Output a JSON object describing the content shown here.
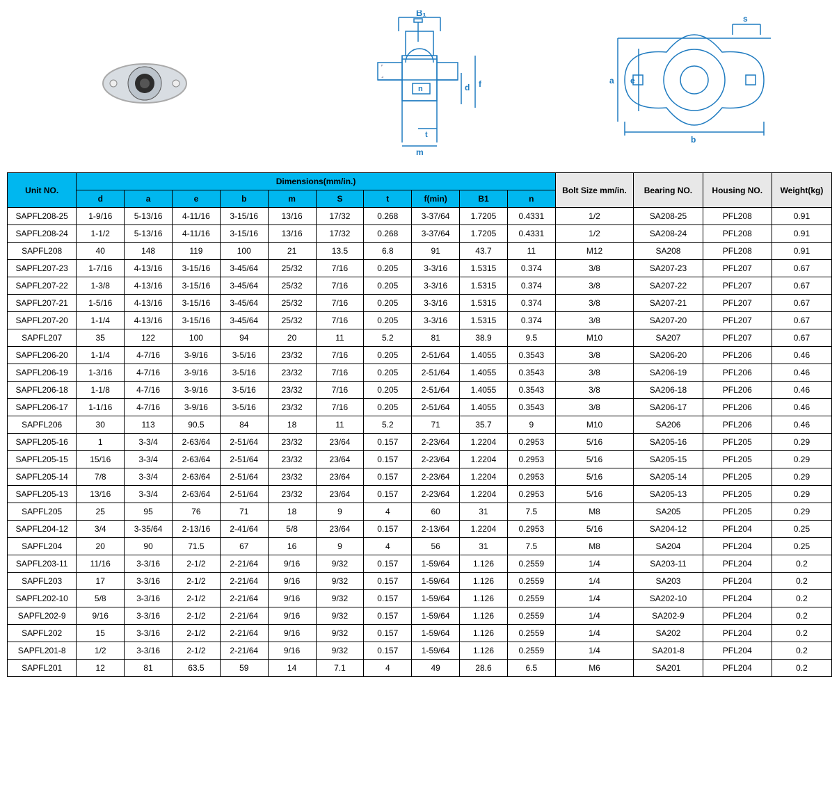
{
  "headers": {
    "unit": "Unit NO.",
    "dimensions": "Dimensions(mm/in.)",
    "bolt": "Bolt Size mm/in.",
    "bearing": "Bearing NO.",
    "housing": "Housing NO.",
    "weight": "Weight(kg)"
  },
  "dim_cols": [
    "d",
    "a",
    "e",
    "b",
    "m",
    "S",
    "t",
    "f(min)",
    "B1",
    "n"
  ],
  "colors": {
    "header_cyan": "#00b7ef",
    "header_grey": "#e8e8e8",
    "border": "#000000",
    "text": "#000000",
    "diagram_label": "#1f7bc0"
  },
  "diagram_labels": {
    "side": [
      "B₁",
      "d",
      "f",
      "n",
      "t",
      "m"
    ],
    "front": [
      "s",
      "a",
      "e",
      "b"
    ]
  },
  "rows": [
    [
      "SAPFL208-25",
      "1-9/16",
      "5-13/16",
      "4-11/16",
      "3-15/16",
      "13/16",
      "17/32",
      "0.268",
      "3-37/64",
      "1.7205",
      "0.4331",
      "1/2",
      "SA208-25",
      "PFL208",
      "0.91"
    ],
    [
      "SAPFL208-24",
      "1-1/2",
      "5-13/16",
      "4-11/16",
      "3-15/16",
      "13/16",
      "17/32",
      "0.268",
      "3-37/64",
      "1.7205",
      "0.4331",
      "1/2",
      "SA208-24",
      "PFL208",
      "0.91"
    ],
    [
      "SAPFL208",
      "40",
      "148",
      "119",
      "100",
      "21",
      "13.5",
      "6.8",
      "91",
      "43.7",
      "11",
      "M12",
      "SA208",
      "PFL208",
      "0.91"
    ],
    [
      "SAPFL207-23",
      "1-7/16",
      "4-13/16",
      "3-15/16",
      "3-45/64",
      "25/32",
      "7/16",
      "0.205",
      "3-3/16",
      "1.5315",
      "0.374",
      "3/8",
      "SA207-23",
      "PFL207",
      "0.67"
    ],
    [
      "SAPFL207-22",
      "1-3/8",
      "4-13/16",
      "3-15/16",
      "3-45/64",
      "25/32",
      "7/16",
      "0.205",
      "3-3/16",
      "1.5315",
      "0.374",
      "3/8",
      "SA207-22",
      "PFL207",
      "0.67"
    ],
    [
      "SAPFL207-21",
      "1-5/16",
      "4-13/16",
      "3-15/16",
      "3-45/64",
      "25/32",
      "7/16",
      "0.205",
      "3-3/16",
      "1.5315",
      "0.374",
      "3/8",
      "SA207-21",
      "PFL207",
      "0.67"
    ],
    [
      "SAPFL207-20",
      "1-1/4",
      "4-13/16",
      "3-15/16",
      "3-45/64",
      "25/32",
      "7/16",
      "0.205",
      "3-3/16",
      "1.5315",
      "0.374",
      "3/8",
      "SA207-20",
      "PFL207",
      "0.67"
    ],
    [
      "SAPFL207",
      "35",
      "122",
      "100",
      "94",
      "20",
      "11",
      "5.2",
      "81",
      "38.9",
      "9.5",
      "M10",
      "SA207",
      "PFL207",
      "0.67"
    ],
    [
      "SAPFL206-20",
      "1-1/4",
      "4-7/16",
      "3-9/16",
      "3-5/16",
      "23/32",
      "7/16",
      "0.205",
      "2-51/64",
      "1.4055",
      "0.3543",
      "3/8",
      "SA206-20",
      "PFL206",
      "0.46"
    ],
    [
      "SAPFL206-19",
      "1-3/16",
      "4-7/16",
      "3-9/16",
      "3-5/16",
      "23/32",
      "7/16",
      "0.205",
      "2-51/64",
      "1.4055",
      "0.3543",
      "3/8",
      "SA206-19",
      "PFL206",
      "0.46"
    ],
    [
      "SAPFL206-18",
      "1-1/8",
      "4-7/16",
      "3-9/16",
      "3-5/16",
      "23/32",
      "7/16",
      "0.205",
      "2-51/64",
      "1.4055",
      "0.3543",
      "3/8",
      "SA206-18",
      "PFL206",
      "0.46"
    ],
    [
      "SAPFL206-17",
      "1-1/16",
      "4-7/16",
      "3-9/16",
      "3-5/16",
      "23/32",
      "7/16",
      "0.205",
      "2-51/64",
      "1.4055",
      "0.3543",
      "3/8",
      "SA206-17",
      "PFL206",
      "0.46"
    ],
    [
      "SAPFL206",
      "30",
      "113",
      "90.5",
      "84",
      "18",
      "11",
      "5.2",
      "71",
      "35.7",
      "9",
      "M10",
      "SA206",
      "PFL206",
      "0.46"
    ],
    [
      "SAPFL205-16",
      "1",
      "3-3/4",
      "2-63/64",
      "2-51/64",
      "23/32",
      "23/64",
      "0.157",
      "2-23/64",
      "1.2204",
      "0.2953",
      "5/16",
      "SA205-16",
      "PFL205",
      "0.29"
    ],
    [
      "SAPFL205-15",
      "15/16",
      "3-3/4",
      "2-63/64",
      "2-51/64",
      "23/32",
      "23/64",
      "0.157",
      "2-23/64",
      "1.2204",
      "0.2953",
      "5/16",
      "SA205-15",
      "PFL205",
      "0.29"
    ],
    [
      "SAPFL205-14",
      "7/8",
      "3-3/4",
      "2-63/64",
      "2-51/64",
      "23/32",
      "23/64",
      "0.157",
      "2-23/64",
      "1.2204",
      "0.2953",
      "5/16",
      "SA205-14",
      "PFL205",
      "0.29"
    ],
    [
      "SAPFL205-13",
      "13/16",
      "3-3/4",
      "2-63/64",
      "2-51/64",
      "23/32",
      "23/64",
      "0.157",
      "2-23/64",
      "1.2204",
      "0.2953",
      "5/16",
      "SA205-13",
      "PFL205",
      "0.29"
    ],
    [
      "SAPFL205",
      "25",
      "95",
      "76",
      "71",
      "18",
      "9",
      "4",
      "60",
      "31",
      "7.5",
      "M8",
      "SA205",
      "PFL205",
      "0.29"
    ],
    [
      "SAPFL204-12",
      "3/4",
      "3-35/64",
      "2-13/16",
      "2-41/64",
      "5/8",
      "23/64",
      "0.157",
      "2-13/64",
      "1.2204",
      "0.2953",
      "5/16",
      "SA204-12",
      "PFL204",
      "0.25"
    ],
    [
      "SAPFL204",
      "20",
      "90",
      "71.5",
      "67",
      "16",
      "9",
      "4",
      "56",
      "31",
      "7.5",
      "M8",
      "SA204",
      "PFL204",
      "0.25"
    ],
    [
      "SAPFL203-11",
      "11/16",
      "3-3/16",
      "2-1/2",
      "2-21/64",
      "9/16",
      "9/32",
      "0.157",
      "1-59/64",
      "1.126",
      "0.2559",
      "1/4",
      "SA203-11",
      "PFL204",
      "0.2"
    ],
    [
      "SAPFL203",
      "17",
      "3-3/16",
      "2-1/2",
      "2-21/64",
      "9/16",
      "9/32",
      "0.157",
      "1-59/64",
      "1.126",
      "0.2559",
      "1/4",
      "SA203",
      "PFL204",
      "0.2"
    ],
    [
      "SAPFL202-10",
      "5/8",
      "3-3/16",
      "2-1/2",
      "2-21/64",
      "9/16",
      "9/32",
      "0.157",
      "1-59/64",
      "1.126",
      "0.2559",
      "1/4",
      "SA202-10",
      "PFL204",
      "0.2"
    ],
    [
      "SAPFL202-9",
      "9/16",
      "3-3/16",
      "2-1/2",
      "2-21/64",
      "9/16",
      "9/32",
      "0.157",
      "1-59/64",
      "1.126",
      "0.2559",
      "1/4",
      "SA202-9",
      "PFL204",
      "0.2"
    ],
    [
      "SAPFL202",
      "15",
      "3-3/16",
      "2-1/2",
      "2-21/64",
      "9/16",
      "9/32",
      "0.157",
      "1-59/64",
      "1.126",
      "0.2559",
      "1/4",
      "SA202",
      "PFL204",
      "0.2"
    ],
    [
      "SAPFL201-8",
      "1/2",
      "3-3/16",
      "2-1/2",
      "2-21/64",
      "9/16",
      "9/32",
      "0.157",
      "1-59/64",
      "1.126",
      "0.2559",
      "1/4",
      "SA201-8",
      "PFL204",
      "0.2"
    ],
    [
      "SAPFL201",
      "12",
      "81",
      "63.5",
      "59",
      "14",
      "7.1",
      "4",
      "49",
      "28.6",
      "6.5",
      "M6",
      "SA201",
      "PFL204",
      "0.2"
    ]
  ]
}
